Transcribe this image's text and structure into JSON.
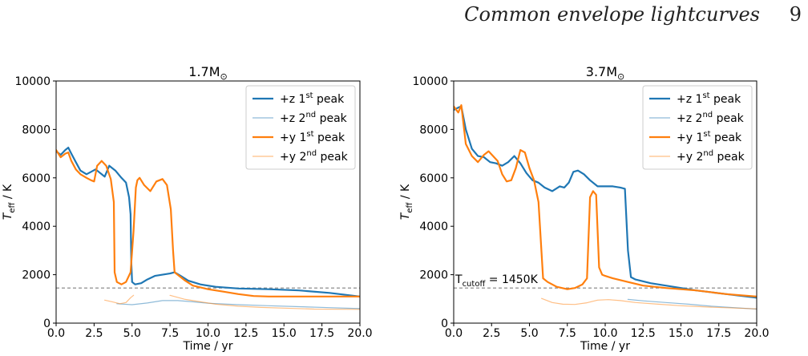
{
  "running_head": {
    "title": "Common envelope lightcurves",
    "page": "9"
  },
  "chart_data": [
    {
      "type": "line",
      "title": "1.7M",
      "title_sub": "⊙",
      "xlabel": "Time / yr",
      "ylabel": "T_eff / K",
      "ylabel_main": "T",
      "ylabel_sub": "eff",
      "ylabel_tail": " / K",
      "xlim": [
        0,
        20
      ],
      "ylim": [
        0,
        10000
      ],
      "xticks": [
        0.0,
        2.5,
        5.0,
        7.5,
        10.0,
        12.5,
        15.0,
        17.5,
        20.0
      ],
      "xtick_labels": [
        "0.0",
        "2.5",
        "5.0",
        "7.5",
        "10.0",
        "12.5",
        "15.0",
        "17.5",
        "20.0"
      ],
      "yticks": [
        0,
        2000,
        4000,
        6000,
        8000,
        10000
      ],
      "ytick_labels": [
        "0",
        "2000",
        "4000",
        "6000",
        "8000",
        "10000"
      ],
      "legend_position": "top-right",
      "hline": {
        "y": 1450,
        "style": "dashed",
        "color": "#808080",
        "label": ""
      },
      "series": [
        {
          "name": "+z  1st peak",
          "label_main": "+z  1",
          "label_sup": "st",
          "label_tail": " peak",
          "color": "#1f77b4",
          "width": 2.2,
          "opacity": 1.0,
          "x": [
            0,
            0.3,
            0.6,
            0.8,
            1.0,
            1.3,
            1.6,
            2.0,
            2.3,
            2.6,
            2.9,
            3.2,
            3.5,
            3.9,
            4.3,
            4.6,
            4.8,
            4.9,
            4.95,
            5.0,
            5.2,
            5.6,
            6.0,
            6.5,
            7.0,
            7.5,
            7.8,
            8.2,
            8.7,
            9.5,
            10.5,
            12.0,
            14.0,
            16.0,
            18.0,
            20.0
          ],
          "y": [
            7100,
            6950,
            7150,
            7250,
            7000,
            6650,
            6300,
            6150,
            6250,
            6350,
            6200,
            6050,
            6500,
            6300,
            6000,
            5800,
            5200,
            4500,
            2500,
            1700,
            1600,
            1650,
            1800,
            1950,
            2000,
            2050,
            2100,
            1950,
            1750,
            1600,
            1500,
            1430,
            1400,
            1350,
            1250,
            1100
          ]
        },
        {
          "name": "+z  2nd peak",
          "label_main": "+z  2",
          "label_sup": "nd",
          "label_tail": " peak",
          "color": "#1f77b4",
          "width": 1.2,
          "opacity": 0.5,
          "x": [
            4.0,
            5.0,
            6.0,
            7.0,
            8.0,
            9.0,
            10.0,
            12.0,
            14.0,
            16.0,
            18.0,
            20.0
          ],
          "y": [
            800,
            760,
            830,
            930,
            930,
            880,
            820,
            760,
            720,
            680,
            640,
            600
          ]
        },
        {
          "name": "+y  1st peak",
          "label_main": "+y  1",
          "label_sup": "st",
          "label_tail": " peak",
          "color": "#ff7f0e",
          "width": 2.2,
          "opacity": 1.0,
          "x": [
            0,
            0.3,
            0.6,
            0.8,
            1.0,
            1.3,
            1.6,
            2.0,
            2.3,
            2.5,
            2.7,
            3.0,
            3.3,
            3.6,
            3.8,
            3.85,
            4.0,
            4.3,
            4.6,
            4.9,
            5.1,
            5.25,
            5.35,
            5.5,
            5.8,
            6.2,
            6.6,
            7.0,
            7.3,
            7.55,
            7.7,
            7.8,
            8.0,
            8.5,
            9.0,
            10.0,
            11.0,
            12.0,
            13.0,
            14.0,
            16.0,
            18.0,
            20.0
          ],
          "y": [
            7150,
            6850,
            7000,
            7050,
            6700,
            6350,
            6150,
            6000,
            5900,
            5850,
            6500,
            6700,
            6500,
            5950,
            5000,
            2100,
            1700,
            1600,
            1700,
            2100,
            3800,
            5600,
            5900,
            6000,
            5700,
            5450,
            5850,
            5950,
            5700,
            4700,
            3000,
            2100,
            2000,
            1750,
            1550,
            1400,
            1300,
            1200,
            1120,
            1100,
            1100,
            1100,
            1100
          ]
        },
        {
          "name": "+y  2nd peak",
          "label_main": "+y  2",
          "label_sup": "nd",
          "label_tail": " peak",
          "color": "#ff7f0e",
          "width": 1.2,
          "opacity": 0.5,
          "x": [
            3.2,
            3.7,
            4.2,
            4.6,
            4.9,
            5.1
          ],
          "y": [
            950,
            880,
            800,
            850,
            1050,
            1150
          ]
        },
        {
          "name": "",
          "label_main": "",
          "label_sup": "",
          "label_tail": "",
          "color": "#ff7f0e",
          "width": 1.2,
          "opacity": 0.5,
          "in_legend": false,
          "x": [
            7.5,
            8.5,
            9.5,
            10.5,
            12.0,
            13.5,
            15.0,
            17.0,
            20.0
          ],
          "y": [
            1150,
            980,
            880,
            780,
            700,
            650,
            620,
            580,
            570
          ]
        }
      ]
    },
    {
      "type": "line",
      "title": "3.7M",
      "title_sub": "⊙",
      "xlabel": "Time / yr",
      "ylabel": "T_eff / K",
      "ylabel_main": "T",
      "ylabel_sub": "eff",
      "ylabel_tail": " / K",
      "xlim": [
        0,
        20
      ],
      "ylim": [
        0,
        10000
      ],
      "xticks": [
        0.0,
        2.5,
        5.0,
        7.5,
        10.0,
        12.5,
        15.0,
        17.5,
        20.0
      ],
      "xtick_labels": [
        "0.0",
        "2.5",
        "5.0",
        "7.5",
        "10.0",
        "12.5",
        "15.0",
        "17.5",
        "20.0"
      ],
      "yticks": [
        0,
        2000,
        4000,
        6000,
        8000,
        10000
      ],
      "ytick_labels": [
        "0",
        "2000",
        "4000",
        "6000",
        "8000",
        "10000"
      ],
      "legend_position": "top-right",
      "hline": {
        "y": 1450,
        "style": "dashed",
        "color": "#808080",
        "label": "T_cutoff = 1450K",
        "label_main": "T",
        "label_sub": "cutoff",
        "label_tail": " = 1450K"
      },
      "series": [
        {
          "name": "+z  1st peak",
          "label_main": "+z  1",
          "label_sup": "st",
          "label_tail": " peak",
          "color": "#1f77b4",
          "width": 2.2,
          "opacity": 1.0,
          "x": [
            0,
            0.3,
            0.5,
            0.8,
            1.2,
            1.6,
            2.0,
            2.4,
            2.8,
            3.2,
            3.6,
            4.0,
            4.4,
            4.8,
            5.2,
            5.6,
            6.0,
            6.5,
            7.0,
            7.3,
            7.6,
            7.9,
            8.2,
            8.6,
            9.0,
            9.5,
            10.0,
            10.5,
            11.0,
            11.3,
            11.5,
            11.7,
            12.0,
            13.0,
            14.0,
            15.0,
            16.0,
            18.0,
            20.0
          ],
          "y": [
            8800,
            8900,
            8950,
            8000,
            7200,
            6900,
            6850,
            6650,
            6600,
            6500,
            6650,
            6900,
            6600,
            6200,
            5900,
            5800,
            5600,
            5450,
            5650,
            5600,
            5800,
            6250,
            6300,
            6150,
            5900,
            5650,
            5650,
            5650,
            5600,
            5550,
            3000,
            1900,
            1800,
            1650,
            1550,
            1450,
            1350,
            1200,
            1050
          ]
        },
        {
          "name": "+z  2nd peak",
          "label_main": "+z  2",
          "label_sup": "nd",
          "label_tail": " peak",
          "color": "#1f77b4",
          "width": 1.2,
          "opacity": 0.5,
          "x": [
            11.5,
            12.5,
            14.0,
            15.5,
            17.0,
            18.5,
            20.0
          ],
          "y": [
            980,
            920,
            850,
            780,
            700,
            640,
            580
          ]
        },
        {
          "name": "+y  1st peak",
          "label_main": "+y  1",
          "label_sup": "st",
          "label_tail": " peak",
          "color": "#ff7f0e",
          "width": 2.2,
          "opacity": 1.0,
          "x": [
            0,
            0.3,
            0.5,
            0.8,
            1.2,
            1.6,
            2.0,
            2.3,
            2.6,
            2.9,
            3.2,
            3.5,
            3.8,
            4.1,
            4.4,
            4.7,
            5.0,
            5.3,
            5.6,
            5.8,
            5.9,
            6.2,
            6.8,
            7.5,
            8.0,
            8.5,
            8.8,
            9.0,
            9.2,
            9.4,
            9.6,
            9.8,
            10.0,
            10.5,
            11.5,
            12.5,
            14.0,
            16.0,
            18.0,
            20.0
          ],
          "y": [
            8950,
            8700,
            9000,
            7400,
            6900,
            6650,
            6950,
            7100,
            6900,
            6700,
            6150,
            5850,
            5900,
            6400,
            7150,
            7050,
            6400,
            5900,
            5000,
            2900,
            1850,
            1700,
            1500,
            1400,
            1450,
            1600,
            1850,
            5200,
            5450,
            5300,
            2300,
            2000,
            1950,
            1850,
            1700,
            1550,
            1450,
            1350,
            1200,
            1100
          ]
        },
        {
          "name": "+y  2nd peak",
          "label_main": "+y  2",
          "label_sup": "nd",
          "label_tail": " peak",
          "color": "#ff7f0e",
          "width": 1.2,
          "opacity": 0.5,
          "x": [
            5.8,
            6.5,
            7.2,
            8.0,
            8.8,
            9.5,
            10.2,
            11.0,
            12.0,
            13.5,
            15.0,
            17.0,
            20.0
          ],
          "y": [
            1020,
            850,
            780,
            770,
            840,
            950,
            970,
            930,
            850,
            780,
            720,
            660,
            590
          ]
        }
      ]
    }
  ]
}
